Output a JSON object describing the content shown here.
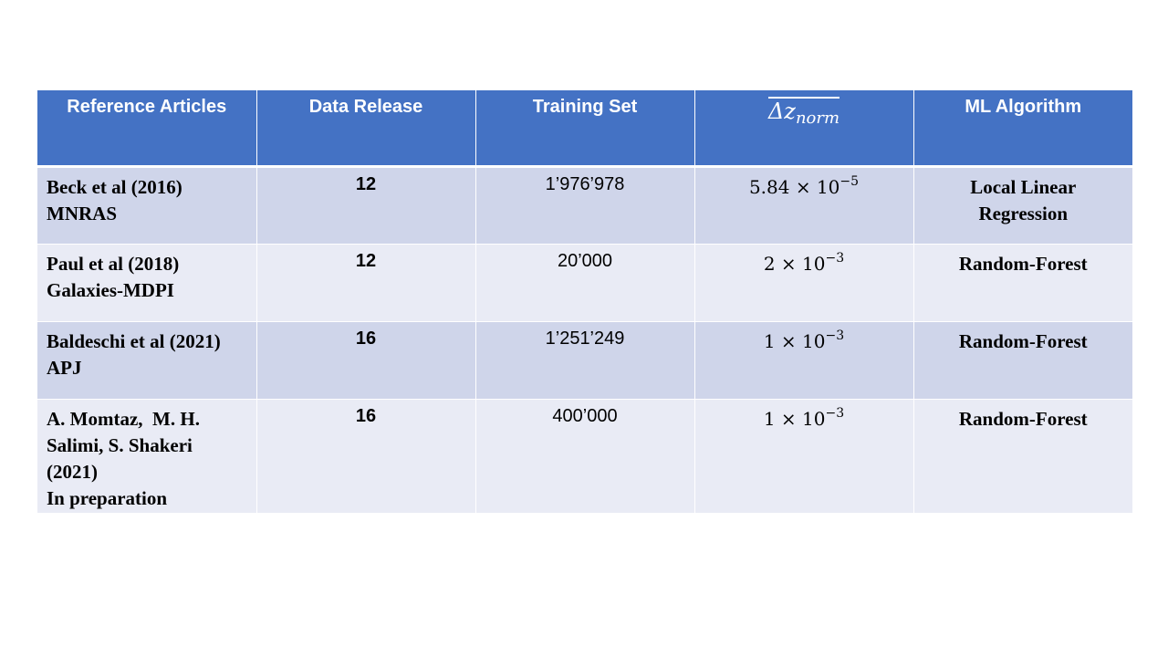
{
  "table": {
    "headers": {
      "reference": "Reference Articles",
      "data_release": "Data Release",
      "training_set": "Training Set",
      "dz_main": "Δz",
      "dz_sub": "norm",
      "ml_algorithm": "ML Algorithm"
    },
    "rows": [
      {
        "ref_lines": [
          "Beck et al (2016)",
          "MNRAS"
        ],
        "data_release": "12",
        "training_set": "1’976’978",
        "dz_mantissa": "5.84 × 10",
        "dz_exp": "−5",
        "ml_lines": [
          "Local Linear",
          "Regression"
        ]
      },
      {
        "ref_lines": [
          "Paul et al (2018)",
          "Galaxies-MDPI"
        ],
        "data_release": "12",
        "training_set": "20’000",
        "dz_mantissa": "2 × 10",
        "dz_exp": "−3",
        "ml_lines": [
          "Random-Forest"
        ]
      },
      {
        "ref_lines": [
          "Baldeschi et al (2021)",
          "APJ"
        ],
        "data_release": "16",
        "training_set": "1’251’249",
        "dz_mantissa": "1 × 10",
        "dz_exp": "−3",
        "ml_lines": [
          "Random-Forest"
        ]
      },
      {
        "ref_lines": [
          "A. Momtaz,  M. H.",
          "Salimi, S. Shakeri",
          "(2021)",
          "In preparation"
        ],
        "data_release": "16",
        "training_set": "400’000",
        "dz_mantissa": "1 × 10",
        "dz_exp": "−3",
        "ml_lines": [
          "Random-Forest"
        ]
      }
    ]
  },
  "colors": {
    "header_bg": "#4472c4",
    "row_dark": "#cfd5ea",
    "row_light": "#e9ebf5"
  }
}
